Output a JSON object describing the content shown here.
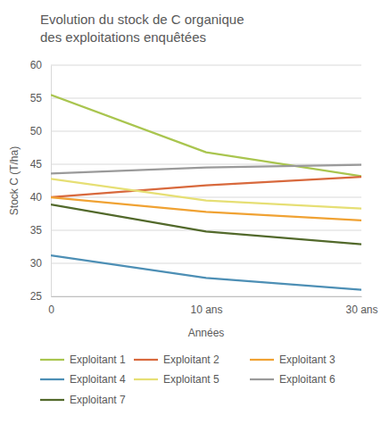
{
  "chart_data": {
    "type": "line",
    "title": "Evolution du stock de C organique des exploitations enquêtées",
    "x_label": "Années",
    "y_label": "Stock C (T/ha)",
    "categories": [
      "0",
      "10 ans",
      "30 ans"
    ],
    "series": [
      {
        "name": "Exploitant 1",
        "color": "#a9c54f",
        "values": [
          55.5,
          46.8,
          43.2
        ]
      },
      {
        "name": "Exploitant 2",
        "color": "#d8693d",
        "values": [
          40.0,
          41.8,
          43.1
        ]
      },
      {
        "name": "Exploitant 3",
        "color": "#f0a233",
        "values": [
          40.0,
          37.8,
          36.5
        ]
      },
      {
        "name": "Exploitant 4",
        "color": "#4d8fb5",
        "values": [
          31.2,
          27.8,
          26.0
        ]
      },
      {
        "name": "Exploitant 5",
        "color": "#e6df74",
        "values": [
          42.8,
          39.5,
          38.3
        ]
      },
      {
        "name": "Exploitant 6",
        "color": "#9a9a9a",
        "values": [
          43.6,
          44.5,
          44.9
        ]
      },
      {
        "name": "Exploitant 7",
        "color": "#52692b",
        "values": [
          38.9,
          34.8,
          32.9
        ]
      }
    ],
    "ylim": [
      25,
      60
    ],
    "yticks": [
      25,
      30,
      35,
      40,
      45,
      50,
      55,
      60
    ],
    "grid": true,
    "legend": "bottom"
  }
}
